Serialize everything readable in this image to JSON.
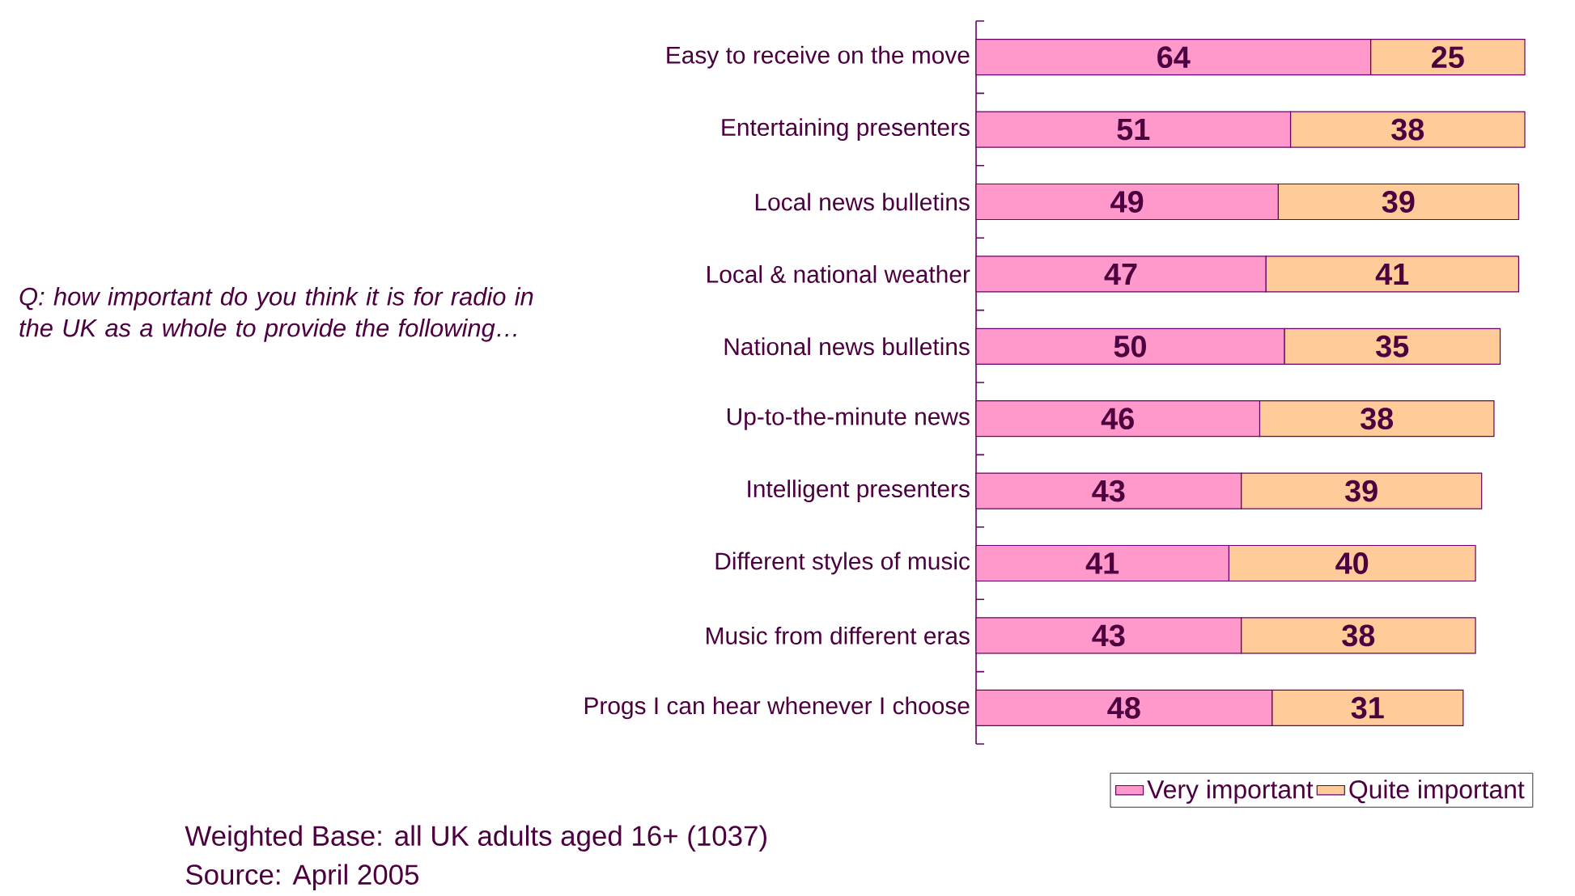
{
  "chart_data": {
    "type": "bar",
    "orientation": "horizontal",
    "stacked": true,
    "data_labels": true,
    "legend": "bottom right",
    "categories": [
      "Easy to receive on the move",
      "Entertaining presenters",
      "Local news bulletins",
      "Local & national weather",
      "National news bulletins",
      "Up-to-the-minute news",
      "Intelligent presenters",
      "Different styles of music",
      "Music from different eras",
      "Progs I can hear whenever I choose"
    ],
    "series": [
      {
        "name": "Very important",
        "color": "#ff99cc",
        "values": [
          64,
          51,
          49,
          47,
          50,
          46,
          43,
          41,
          43,
          48
        ]
      },
      {
        "name": "Quite important",
        "color": "#ffcc99",
        "values": [
          25,
          38,
          39,
          41,
          35,
          38,
          39,
          40,
          38,
          31
        ]
      }
    ],
    "annotations": [
      "Q:  how important do you think it is for radio in the UK as a whole to provide the following…",
      "Weighted Base: all UK adults aged 16+ (1037)",
      "Source: April 2005"
    ]
  }
}
